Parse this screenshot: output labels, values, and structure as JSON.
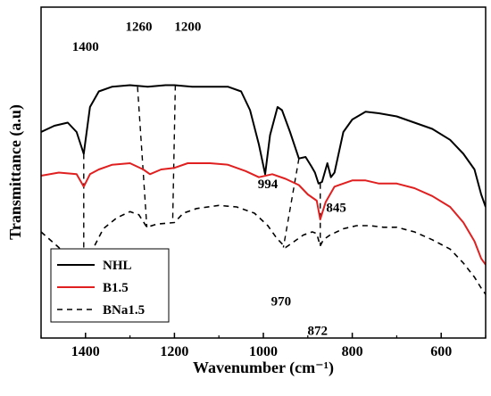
{
  "chart_data": {
    "type": "line",
    "xlabel": "Wavenumber (cm⁻¹)",
    "ylabel": "Transmittance (a.u)",
    "xlim": [
      1500,
      500
    ],
    "x_reversed": true,
    "x_ticks": [
      1400,
      1200,
      1000,
      800,
      600
    ],
    "y_ticks_shown": false,
    "grid": false,
    "legend_placement": "bottom-left",
    "series": [
      {
        "name": "NHL",
        "color": "#000000",
        "dash": "solid",
        "points": [
          [
            1500,
            4.6
          ],
          [
            1470,
            4.8
          ],
          [
            1440,
            4.9
          ],
          [
            1420,
            4.6
          ],
          [
            1404,
            3.9
          ],
          [
            1390,
            5.4
          ],
          [
            1370,
            5.9
          ],
          [
            1340,
            6.05
          ],
          [
            1300,
            6.1
          ],
          [
            1260,
            6.05
          ],
          [
            1220,
            6.1
          ],
          [
            1200,
            6.1
          ],
          [
            1160,
            6.05
          ],
          [
            1120,
            6.05
          ],
          [
            1080,
            6.05
          ],
          [
            1050,
            5.9
          ],
          [
            1030,
            5.3
          ],
          [
            1010,
            4.2
          ],
          [
            996,
            3.25
          ],
          [
            985,
            4.5
          ],
          [
            968,
            5.4
          ],
          [
            958,
            5.3
          ],
          [
            940,
            4.6
          ],
          [
            920,
            3.75
          ],
          [
            905,
            3.8
          ],
          [
            892,
            3.5
          ],
          [
            884,
            3.3
          ],
          [
            876,
            2.95
          ],
          [
            868,
            3.0
          ],
          [
            856,
            3.6
          ],
          [
            848,
            3.15
          ],
          [
            840,
            3.3
          ],
          [
            820,
            4.6
          ],
          [
            800,
            5.0
          ],
          [
            770,
            5.25
          ],
          [
            740,
            5.2
          ],
          [
            700,
            5.1
          ],
          [
            660,
            4.9
          ],
          [
            620,
            4.7
          ],
          [
            580,
            4.35
          ],
          [
            550,
            3.9
          ],
          [
            525,
            3.4
          ],
          [
            510,
            2.6
          ],
          [
            500,
            2.2
          ]
        ]
      },
      {
        "name": "B1.5",
        "color": "#e02020",
        "dash": "solid",
        "points": [
          [
            1500,
            3.2
          ],
          [
            1460,
            3.3
          ],
          [
            1420,
            3.25
          ],
          [
            1404,
            2.85
          ],
          [
            1390,
            3.25
          ],
          [
            1370,
            3.4
          ],
          [
            1340,
            3.55
          ],
          [
            1300,
            3.6
          ],
          [
            1270,
            3.4
          ],
          [
            1255,
            3.25
          ],
          [
            1230,
            3.4
          ],
          [
            1200,
            3.45
          ],
          [
            1170,
            3.6
          ],
          [
            1120,
            3.6
          ],
          [
            1080,
            3.55
          ],
          [
            1040,
            3.35
          ],
          [
            1010,
            3.15
          ],
          [
            980,
            3.25
          ],
          [
            950,
            3.1
          ],
          [
            920,
            2.9
          ],
          [
            900,
            2.6
          ],
          [
            880,
            2.4
          ],
          [
            872,
            1.8
          ],
          [
            860,
            2.35
          ],
          [
            840,
            2.85
          ],
          [
            800,
            3.05
          ],
          [
            770,
            3.05
          ],
          [
            740,
            2.95
          ],
          [
            700,
            2.95
          ],
          [
            660,
            2.8
          ],
          [
            620,
            2.55
          ],
          [
            580,
            2.2
          ],
          [
            550,
            1.7
          ],
          [
            525,
            1.1
          ],
          [
            510,
            0.55
          ],
          [
            500,
            0.35
          ]
        ]
      },
      {
        "name": "BNa1.5",
        "color": "#000000",
        "dash": "dashed",
        "points": [
          [
            1500,
            1.4
          ],
          [
            1460,
            0.9
          ],
          [
            1430,
            0.4
          ],
          [
            1404,
            0.1
          ],
          [
            1395,
            0.4
          ],
          [
            1380,
            0.95
          ],
          [
            1360,
            1.5
          ],
          [
            1330,
            1.85
          ],
          [
            1300,
            2.05
          ],
          [
            1280,
            1.95
          ],
          [
            1262,
            1.55
          ],
          [
            1240,
            1.65
          ],
          [
            1200,
            1.7
          ],
          [
            1180,
            2.0
          ],
          [
            1150,
            2.15
          ],
          [
            1100,
            2.25
          ],
          [
            1060,
            2.2
          ],
          [
            1020,
            2.0
          ],
          [
            990,
            1.6
          ],
          [
            970,
            1.2
          ],
          [
            950,
            0.9
          ],
          [
            930,
            1.1
          ],
          [
            910,
            1.3
          ],
          [
            890,
            1.4
          ],
          [
            880,
            1.35
          ],
          [
            872,
            0.95
          ],
          [
            865,
            1.15
          ],
          [
            850,
            1.3
          ],
          [
            820,
            1.5
          ],
          [
            790,
            1.6
          ],
          [
            760,
            1.6
          ],
          [
            730,
            1.55
          ],
          [
            700,
            1.55
          ],
          [
            660,
            1.4
          ],
          [
            620,
            1.15
          ],
          [
            580,
            0.85
          ],
          [
            550,
            0.4
          ],
          [
            525,
            -0.05
          ],
          [
            510,
            -0.4
          ],
          [
            500,
            -0.6
          ]
        ]
      }
    ],
    "annotations": [
      {
        "text": "1400",
        "x": 1400,
        "y": 7.2
      },
      {
        "text": "1260",
        "x": 1280,
        "y": 7.85
      },
      {
        "text": "1200",
        "x": 1170,
        "y": 7.85
      },
      {
        "text": "994",
        "x": 990,
        "y": 2.8
      },
      {
        "text": "845",
        "x": 836,
        "y": 2.05
      },
      {
        "text": "970",
        "x": 960,
        "y": -0.95
      },
      {
        "text": "872",
        "x": 878,
        "y": -1.9
      }
    ],
    "guide_lines": [
      [
        [
          1404,
          3.9
        ],
        [
          1404,
          0.1
        ]
      ],
      [
        [
          1283,
          6.05
        ],
        [
          1262,
          1.55
        ]
      ],
      [
        [
          1198,
          6.1
        ],
        [
          1204,
          1.7
        ]
      ],
      [
        [
          920,
          3.75
        ],
        [
          955,
          0.9
        ]
      ],
      [
        [
          872,
          2.95
        ],
        [
          872,
          0.95
        ]
      ]
    ]
  }
}
